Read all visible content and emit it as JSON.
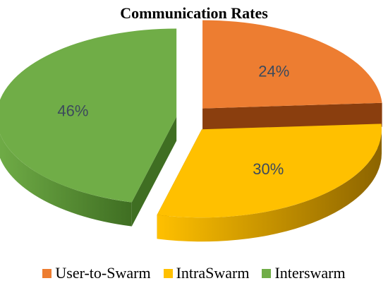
{
  "chart_data": {
    "type": "pie",
    "title": "Communication Rates",
    "categories": [
      "User-to-Swarm",
      "IntraSwarm",
      "Interswarm"
    ],
    "values": [
      24,
      30,
      46
    ],
    "labels": [
      "24%",
      "30%",
      "46%"
    ],
    "colors": [
      "#ED7D31",
      "#FFC000",
      "#70AD47"
    ],
    "side_colors": [
      "#8A3E0E",
      "#8C6400",
      "#3F6E22"
    ],
    "exploded": true,
    "three_d": true,
    "legend_position": "bottom"
  }
}
